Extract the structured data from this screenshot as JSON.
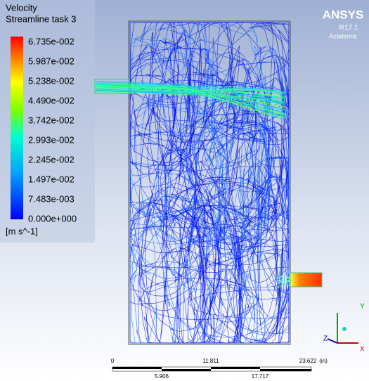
{
  "legend": {
    "title": "Velocity",
    "subtitle": "Streamline task 3",
    "labels": [
      "6.735e-002",
      "5.987e-002",
      "5.238e-002",
      "4.490e-002",
      "3.742e-002",
      "2.993e-002",
      "2.245e-002",
      "1.497e-002",
      "7.483e-003",
      "0.000e+000"
    ],
    "unit": "[m s^-1]"
  },
  "logo": {
    "name": "ANSYS",
    "version": "R17.1",
    "edition": "Academic"
  },
  "scale_bar": {
    "top_labels": [
      "0",
      "11.811",
      "23.622"
    ],
    "unit": "(in)",
    "bottom_labels": [
      "5.906",
      "17.717"
    ]
  },
  "triad": {
    "y": "Y",
    "z": "Z",
    "x": "X"
  }
}
